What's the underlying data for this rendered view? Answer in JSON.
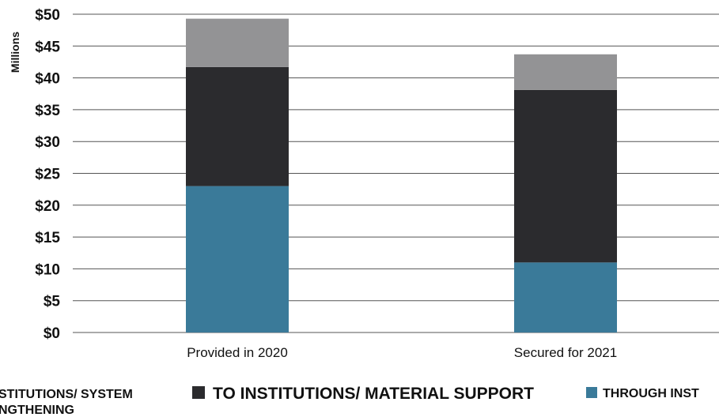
{
  "chart_data": {
    "type": "bar",
    "stacked": true,
    "ylabel": "Millions",
    "ylim": [
      0,
      50
    ],
    "yticks": [
      "$0",
      "$5",
      "$10",
      "$15",
      "$20",
      "$25",
      "$30",
      "$35",
      "$40",
      "$45",
      "$50"
    ],
    "grid": true,
    "categories": [
      "Provided in 2020",
      "Secured for 2021"
    ],
    "series": [
      {
        "name": "THROUGH INST",
        "color": "#3a7a99",
        "values": [
          23,
          11
        ]
      },
      {
        "name": "TO INSTITUTIONS/ MATERIAL SUPPORT",
        "color": "#2b2b2e",
        "values": [
          18.7,
          27.1
        ]
      },
      {
        "name": "STITUTIONS/ SYSTEM NGTHENING",
        "color": "#939395",
        "values": [
          7.6,
          5.6
        ]
      }
    ],
    "legend": {
      "placement": "bottom",
      "items": [
        {
          "line1": "STITUTIONS/ SYSTEM",
          "line2": "NGTHENING",
          "color": "#939395"
        },
        {
          "line1": "TO INSTITUTIONS/ MATERIAL SUPPORT",
          "color": "#2b2b2e"
        },
        {
          "line1": "THROUGH INST",
          "color": "#3a7a99"
        }
      ]
    }
  }
}
